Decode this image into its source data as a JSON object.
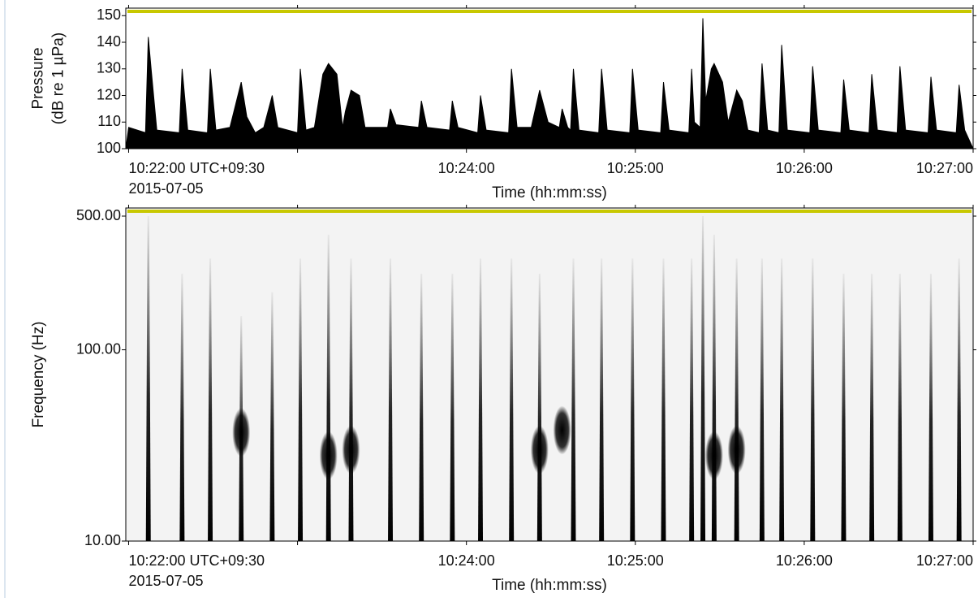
{
  "chart_data": [
    {
      "type": "area",
      "ylabel": [
        "Pressure",
        "(dB re 1 µPa)"
      ],
      "xlabel": "Time (hh:mm:ss)",
      "date": "2015-07-05",
      "color": "#000000",
      "xlim": [
        "10:21:59",
        "10:27:00"
      ],
      "xticks": [
        {
          "value": "10:22:00",
          "label": "10:22:00 UTC+09:30"
        },
        {
          "value": "10:23:00",
          "label": null
        },
        {
          "value": "10:24:00",
          "label": "10:24:00"
        },
        {
          "value": "10:25:00",
          "label": "10:25:00"
        },
        {
          "value": "10:26:00",
          "label": "10:26:00"
        },
        {
          "value": "10:27:00",
          "label": "10:27:00"
        }
      ],
      "ylim": [
        100,
        151
      ],
      "yticks": [
        100,
        110,
        120,
        130,
        140,
        150
      ],
      "x": [
        "10:21:59",
        "10:22:00",
        "10:22:06",
        "10:22:07",
        "10:22:08",
        "10:22:10",
        "10:22:18",
        "10:22:19",
        "10:22:21",
        "10:22:28",
        "10:22:29",
        "10:22:31",
        "10:22:36",
        "10:22:40",
        "10:22:42",
        "10:22:45",
        "10:22:48",
        "10:22:51",
        "10:22:53",
        "10:23:00",
        "10:23:01",
        "10:23:03",
        "10:23:06",
        "10:23:09",
        "10:23:11",
        "10:23:14",
        "10:23:16",
        "10:23:17",
        "10:23:19",
        "10:23:22",
        "10:23:24",
        "10:23:32",
        "10:23:33",
        "10:23:35",
        "10:23:43",
        "10:23:44",
        "10:23:46",
        "10:23:54",
        "10:23:55",
        "10:23:57",
        "10:24:04",
        "10:24:05",
        "10:24:07",
        "10:24:15",
        "10:24:16",
        "10:24:18",
        "10:24:23",
        "10:24:26",
        "10:24:29",
        "10:24:33",
        "10:24:34",
        "10:24:36",
        "10:24:37",
        "10:24:38",
        "10:24:40",
        "10:24:47",
        "10:24:48",
        "10:24:50",
        "10:24:58",
        "10:24:59",
        "10:25:01",
        "10:25:09",
        "10:25:10",
        "10:25:12",
        "10:25:19",
        "10:25:20",
        "10:25:21",
        "10:25:23",
        "10:25:24",
        "10:25:25",
        "10:25:27",
        "10:25:28",
        "10:25:31",
        "10:25:33",
        "10:25:36",
        "10:25:38",
        "10:25:40",
        "10:25:44",
        "10:25:45",
        "10:25:47",
        "10:25:51",
        "10:25:52",
        "10:25:54",
        "10:26:02",
        "10:26:03",
        "10:26:05",
        "10:26:13",
        "10:26:14",
        "10:26:16",
        "10:26:23",
        "10:26:24",
        "10:26:26",
        "10:26:33",
        "10:26:34",
        "10:26:36",
        "10:26:44",
        "10:26:45",
        "10:26:47",
        "10:26:54",
        "10:26:55",
        "10:26:57",
        "10:27:00"
      ],
      "values": [
        100,
        108,
        106,
        142,
        130,
        107,
        106,
        130,
        107,
        106,
        130,
        107,
        108,
        125,
        112,
        106,
        108,
        120,
        108,
        106,
        130,
        107,
        108,
        128,
        132,
        128,
        108,
        114,
        122,
        120,
        108,
        108,
        115,
        109,
        108,
        118,
        108,
        107,
        118,
        108,
        106,
        120,
        107,
        106,
        130,
        108,
        108,
        122,
        110,
        108,
        115,
        108,
        107,
        130,
        107,
        106,
        130,
        107,
        106,
        130,
        107,
        106,
        125,
        107,
        106,
        130,
        110,
        108,
        149,
        118,
        130,
        132,
        125,
        110,
        122,
        118,
        107,
        106,
        132,
        107,
        106,
        139,
        107,
        106,
        131,
        107,
        106,
        126,
        107,
        106,
        128,
        107,
        106,
        131,
        107,
        106,
        127,
        107,
        106,
        124,
        107,
        100
      ]
    },
    {
      "type": "spectrogram",
      "ylabel": [
        "Frequency (Hz)"
      ],
      "xlabel": "Time (hh:mm:ss)",
      "date": "2015-07-05",
      "color": "#000000",
      "log": true,
      "xlim": [
        "10:21:59",
        "10:27:00"
      ],
      "xticks": [
        {
          "value": "10:22:00",
          "label": "10:22:00 UTC+09:30"
        },
        {
          "value": "10:23:00",
          "label": null
        },
        {
          "value": "10:24:00",
          "label": "10:24:00"
        },
        {
          "value": "10:25:00",
          "label": "10:25:00"
        },
        {
          "value": "10:26:00",
          "label": "10:26:00"
        },
        {
          "value": "10:27:00",
          "label": "10:27:00"
        }
      ],
      "ylim": [
        10,
        500
      ],
      "yticks": [
        {
          "value": 10,
          "label": "10.00"
        },
        {
          "value": 100,
          "label": "100.00"
        },
        {
          "value": 500,
          "label": "500.00"
        }
      ],
      "x": [
        "10:22:07",
        "10:22:19",
        "10:22:29",
        "10:22:40",
        "10:22:51",
        "10:23:01",
        "10:23:11",
        "10:23:19",
        "10:23:33",
        "10:23:44",
        "10:23:55",
        "10:24:05",
        "10:24:16",
        "10:24:26",
        "10:24:38",
        "10:24:48",
        "10:24:59",
        "10:25:10",
        "10:25:20",
        "10:25:24",
        "10:25:28",
        "10:25:36",
        "10:25:45",
        "10:25:52",
        "10:26:03",
        "10:26:14",
        "10:26:24",
        "10:26:34",
        "10:26:45",
        "10:26:55"
      ],
      "values": [
        500,
        250,
        300,
        150,
        200,
        300,
        400,
        300,
        300,
        250,
        250,
        300,
        300,
        250,
        300,
        300,
        300,
        300,
        300,
        500,
        400,
        300,
        300,
        300,
        300,
        250,
        250,
        250,
        250,
        300
      ],
      "blob_x": [
        "10:22:40",
        "10:23:11",
        "10:23:19",
        "10:24:26",
        "10:24:34",
        "10:25:28",
        "10:25:36"
      ],
      "blob_values": [
        37,
        28,
        30,
        30,
        38,
        28,
        30
      ]
    }
  ]
}
